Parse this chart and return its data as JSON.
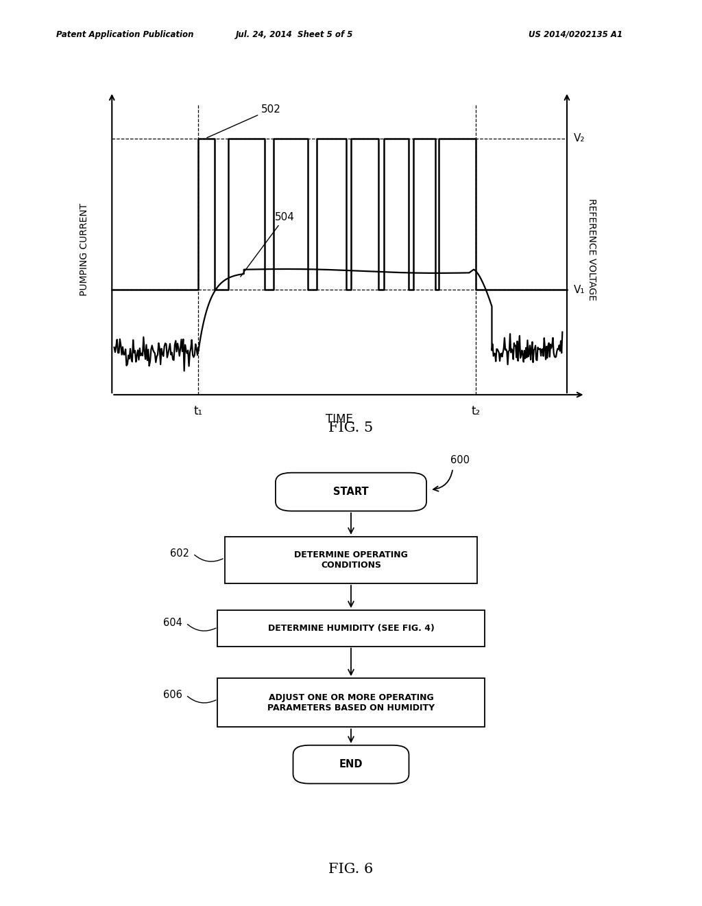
{
  "background_color": "#ffffff",
  "header_left": "Patent Application Publication",
  "header_mid": "Jul. 24, 2014  Sheet 5 of 5",
  "header_right": "US 2014/0202135 A1",
  "fig5_title": "FIG. 5",
  "fig6_title": "FIG. 6",
  "fig5_xlabel": "TIME",
  "fig5_ylabel_left": "PUMPING CURRENT",
  "fig5_ylabel_right": "REFERENCE VOLTAGE",
  "fig5_label_502": "502",
  "fig5_label_504": "504",
  "fig5_label_t1": "t₁",
  "fig5_label_t2": "t₂",
  "fig5_label_V2": "V₂",
  "fig5_label_V1": "V₁",
  "flowchart_label_600": "600",
  "flowchart_label_602": "602",
  "flowchart_label_604": "604",
  "flowchart_label_606": "606",
  "start_text": "START",
  "end_text": "END",
  "box1_text": "DETERMINE OPERATING\nCONDITIONS",
  "box2_text": "DETERMINE HUMIDITY (SEE FIG. 4)",
  "box3_text": "ADJUST ONE OR MORE OPERATING\nPARAMETERS BASED ON HUMIDITY"
}
